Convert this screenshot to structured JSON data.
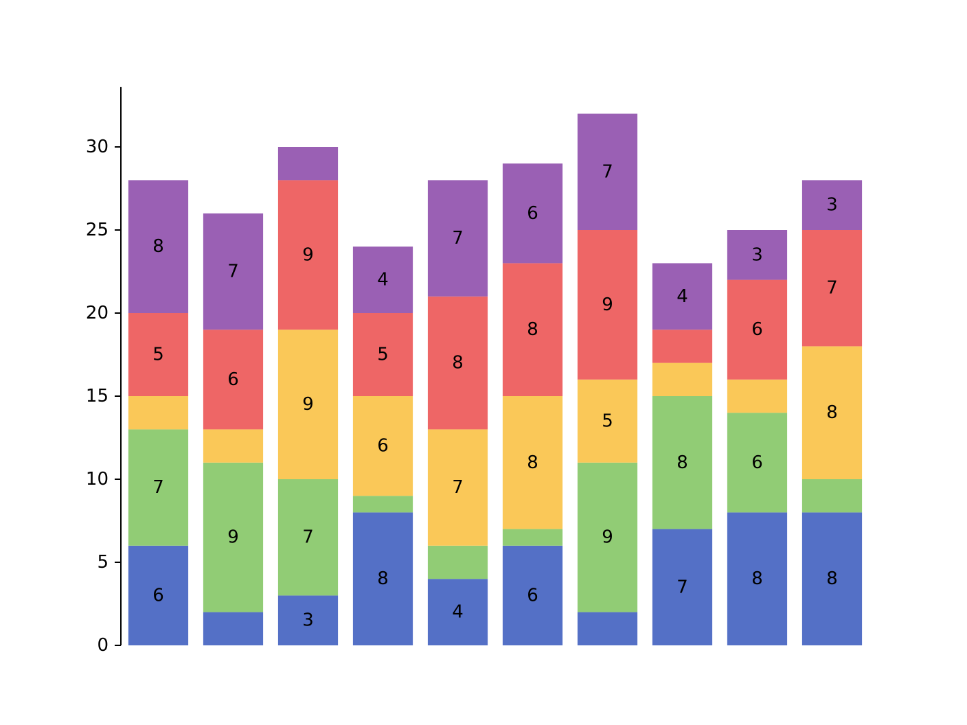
{
  "chart_data": {
    "type": "bar",
    "stacked": true,
    "categories": [
      "",
      "",
      "",
      "",
      "",
      "",
      "",
      "",
      "",
      ""
    ],
    "series": [
      {
        "color": "#5470c6",
        "values": [
          6,
          2,
          3,
          8,
          4,
          6,
          2,
          7,
          8,
          8
        ]
      },
      {
        "color": "#91cc75",
        "values": [
          7,
          9,
          7,
          1,
          2,
          1,
          9,
          8,
          6,
          2
        ]
      },
      {
        "color": "#fac858",
        "values": [
          2,
          2,
          9,
          6,
          7,
          8,
          5,
          2,
          2,
          8
        ]
      },
      {
        "color": "#ee6666",
        "values": [
          5,
          6,
          9,
          5,
          8,
          8,
          9,
          2,
          6,
          7
        ]
      },
      {
        "color": "#9a60b4",
        "values": [
          8,
          7,
          2,
          4,
          7,
          6,
          7,
          4,
          3,
          3
        ]
      }
    ],
    "label_min_value": 3,
    "title": "",
    "xlabel": "",
    "ylabel": "",
    "ylim": [
      0,
      33.6
    ],
    "yticks": [
      0,
      5,
      10,
      15,
      20,
      25,
      30
    ],
    "grid": false,
    "legend": "none"
  }
}
